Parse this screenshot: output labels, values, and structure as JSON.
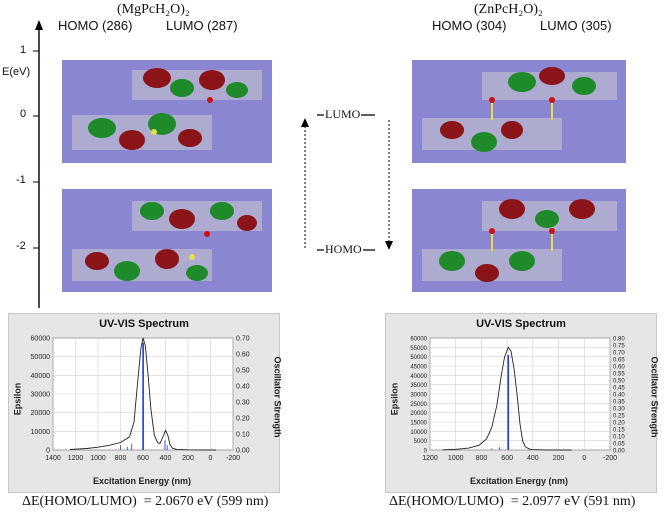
{
  "left": {
    "compound": "(MgPcH₂O)₂",
    "homo_label": "HOMO (286)",
    "lumo_label": "LUMO (287)",
    "delta_text": "ΔE(HOMO/LUMO)  = 2.0670 eV (599 nm)"
  },
  "right": {
    "compound": "(ZnPcH₂O)₂",
    "homo_label": "HOMO (304)",
    "lumo_label": "LUMO (305)",
    "delta_text": "ΔE(HOMO/LUMO)  = 2.0977 eV (591 nm)"
  },
  "energy_axis": {
    "label": "E(eV)",
    "ticks": [
      "1",
      "0",
      "-1",
      "-2"
    ]
  },
  "level_diagram": {
    "lumo": "LUMO",
    "homo": "HOMO"
  },
  "colors": {
    "orbital_background": "#8b86d1",
    "lobe_red": "#8a1418",
    "lobe_green": "#1f8a2a",
    "spectrum_line": "#222222",
    "stick_color": "#1f3bd6"
  },
  "chart_data": [
    {
      "type": "line",
      "title": "UV-VIS Spectrum",
      "xlabel": "Excitation Energy (nm)",
      "ylabel": "Epsilon",
      "y2label": "Oscillator Strength",
      "xlim": [
        1400,
        -200
      ],
      "ylim": [
        0,
        60000
      ],
      "y2lim": [
        0,
        0.7
      ],
      "x_ticks": [
        "1400",
        "1200",
        "1000",
        "800",
        "600",
        "400",
        "200",
        "0",
        "-200"
      ],
      "y_ticks": [
        "0",
        "10000",
        "20000",
        "30000",
        "40000",
        "50000",
        "60000"
      ],
      "y2_ticks": [
        "0.00",
        "0.10",
        "0.20",
        "0.30",
        "0.40",
        "0.50",
        "0.60",
        "0.70"
      ],
      "series": [
        {
          "x": [
            1250,
            1100,
            1000,
            900,
            800,
            720,
            680,
            650,
            620,
            600,
            580,
            555,
            530,
            500,
            470,
            450,
            420,
            400,
            380,
            360,
            340,
            300,
            200,
            100,
            -50
          ],
          "values": [
            300,
            800,
            1500,
            2500,
            4000,
            7000,
            15000,
            35000,
            54000,
            60000,
            56000,
            40000,
            22000,
            8000,
            4000,
            3500,
            7500,
            10500,
            8000,
            3000,
            1000,
            300,
            100,
            50,
            0
          ]
        }
      ],
      "sticks": {
        "x": [
          800,
          740,
          700,
          599,
          405,
          385
        ],
        "values": [
          0.03,
          0.02,
          0.04,
          0.67,
          0.06,
          0.03
        ]
      }
    },
    {
      "type": "line",
      "title": "UV-VIS Spectrum",
      "xlabel": "Excitation Energy (nm)",
      "ylabel": "Epsilon",
      "y2label": "Oscillator Strength",
      "xlim": [
        1200,
        -200
      ],
      "ylim": [
        0,
        60000
      ],
      "y2lim": [
        0,
        0.8
      ],
      "x_ticks": [
        "1200",
        "1000",
        "800",
        "600",
        "400",
        "200",
        "0",
        "-200"
      ],
      "y_ticks": [
        "0",
        "5000",
        "10000",
        "15000",
        "20000",
        "25000",
        "30000",
        "35000",
        "40000",
        "45000",
        "50000",
        "55000",
        "60000"
      ],
      "y2_ticks": [
        "0.00",
        "0.05",
        "0.10",
        "0.15",
        "0.20",
        "0.25",
        "0.30",
        "0.35",
        "0.40",
        "0.45",
        "0.50",
        "0.55",
        "0.60",
        "0.65",
        "0.70",
        "0.75",
        "0.80"
      ],
      "series": [
        {
          "x": [
            1100,
            1000,
            900,
            820,
            760,
            720,
            680,
            650,
            620,
            591,
            570,
            545,
            520,
            500,
            480,
            460,
            430,
            400,
            300,
            100
          ],
          "values": [
            100,
            400,
            1000,
            2500,
            6000,
            12000,
            24000,
            38000,
            50000,
            55000,
            53000,
            43000,
            28000,
            14000,
            5000,
            1800,
            600,
            200,
            50,
            0
          ]
        }
      ],
      "sticks": {
        "x": [
          720,
          660,
          591
        ],
        "values": [
          0.01,
          0.02,
          0.68
        ]
      }
    }
  ]
}
